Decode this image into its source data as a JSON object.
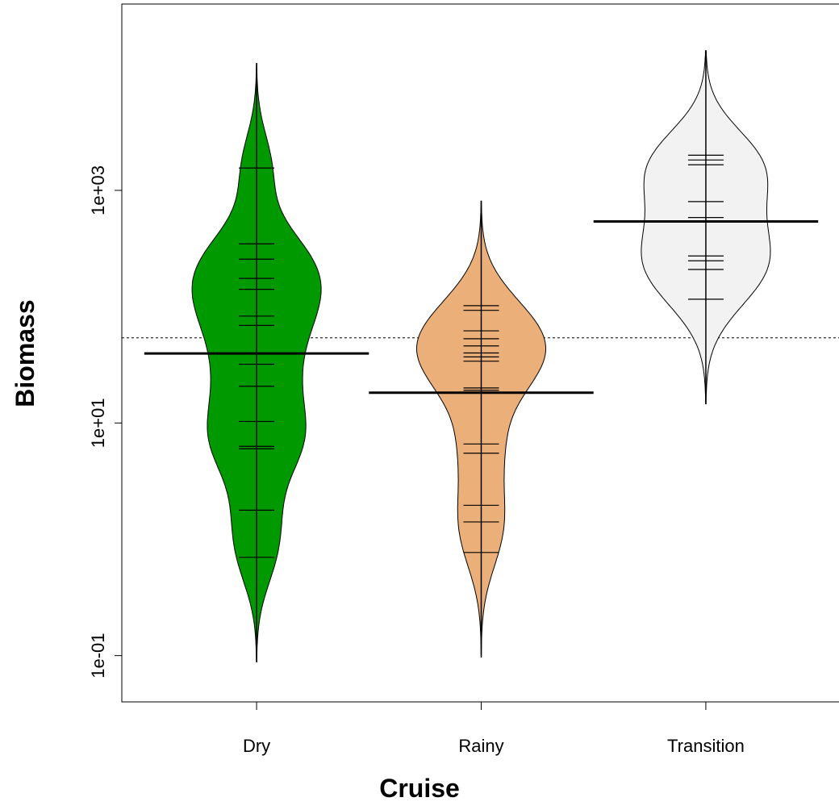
{
  "chart_data": {
    "type": "beanplot",
    "x_label": "Cruise",
    "y_label": "Biomass",
    "categories": [
      "Dry",
      "Rainy",
      "Transition"
    ],
    "colors": [
      "#009900",
      "#ebb07a",
      "#f2f2f2"
    ],
    "values": [
      [
        1557,
        347,
        256,
        175,
        141,
        83,
        69,
        32,
        20.7,
        10.3,
        6.3,
        6.0,
        1.78,
        0.7
      ],
      [
        102,
        93,
        62,
        53,
        46,
        40,
        37,
        34,
        20,
        19.1,
        6.6,
        5.5,
        1.96,
        1.41,
        0.77
      ],
      [
        2005,
        1824,
        1660,
        801,
        584,
        273,
        248,
        209,
        116
      ]
    ],
    "means": [
      39.6,
      18.2,
      540
    ],
    "overall_mean": 54,
    "log_scale": true,
    "ylim": [
      0.04,
      40000
    ],
    "yticks": [
      {
        "value": 0.1,
        "label": "1e-01"
      },
      {
        "value": 10,
        "label": "1e+01"
      },
      {
        "value": 1000,
        "label": "1e+03"
      }
    ]
  }
}
